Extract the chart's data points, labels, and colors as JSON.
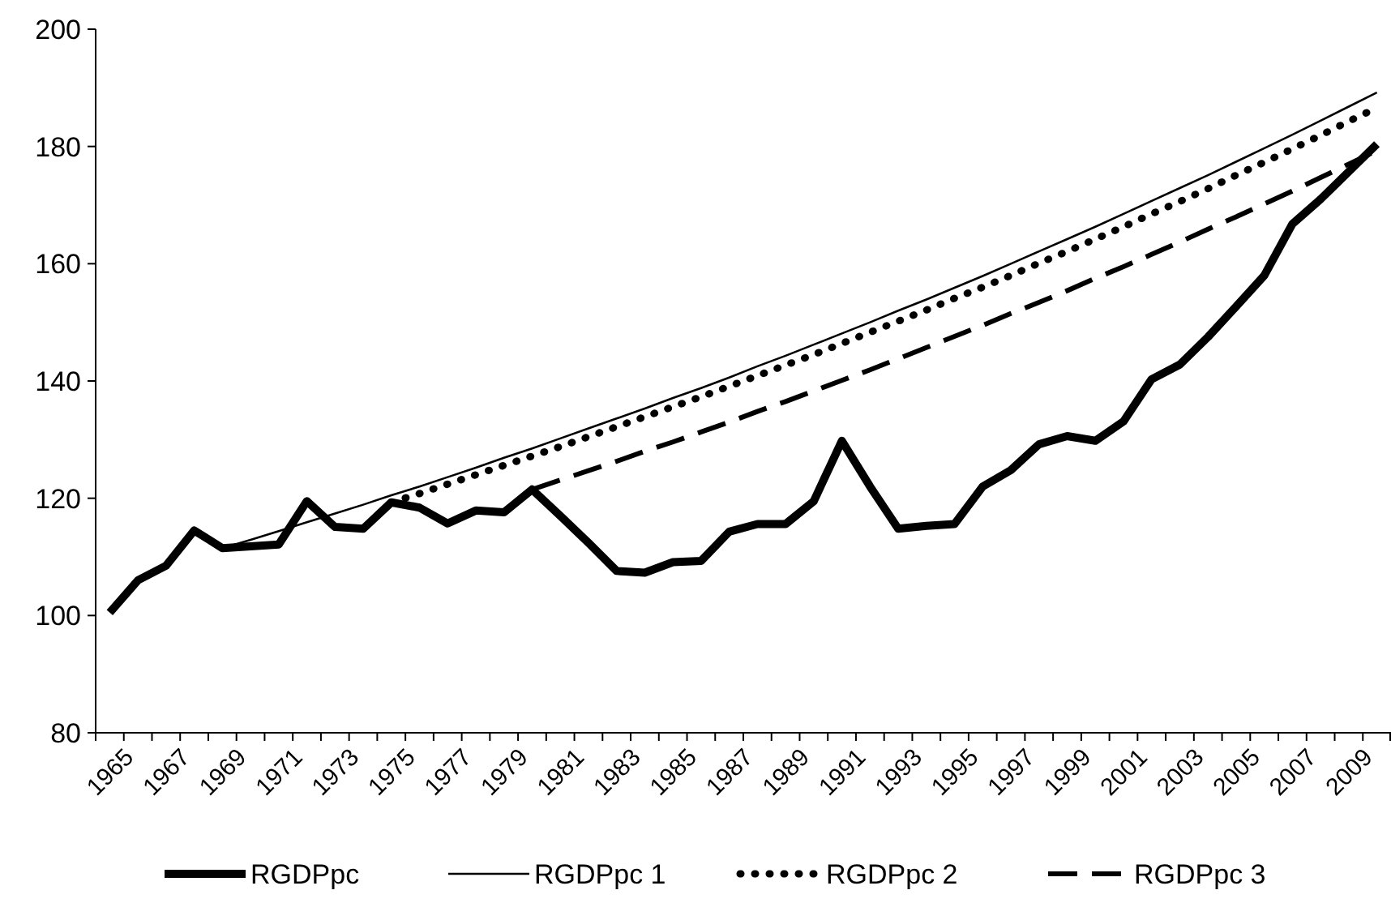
{
  "chart_data": {
    "type": "line",
    "categories": [
      "1965",
      null,
      "1967",
      null,
      "1969",
      null,
      "1971",
      null,
      "1973",
      null,
      "1975",
      null,
      "1977",
      null,
      "1979",
      null,
      "1981",
      null,
      "1983",
      null,
      "1985",
      null,
      "1987",
      null,
      "1989",
      null,
      "1991",
      null,
      "1993",
      null,
      "1995",
      null,
      "1997",
      null,
      "1999",
      null,
      "2001",
      null,
      "2003",
      null,
      "2005",
      null,
      "2007",
      null,
      "2009",
      null
    ],
    "ylim": [
      80,
      200
    ],
    "yticks": [
      80,
      100,
      120,
      140,
      160,
      180,
      200
    ],
    "grid": false,
    "legend": "bottom",
    "marker": "none",
    "series": [
      {
        "name": "RGDPpc",
        "color": "#000000",
        "line_style": "solid",
        "values": [
          100.5,
          106,
          108.5,
          114.5,
          111.5,
          111.8,
          112.1,
          119.5,
          115.1,
          114.8,
          119.3,
          118.4,
          115.7,
          117.9,
          117.6,
          121.5,
          117,
          112.4,
          107.6,
          107.3,
          109.1,
          109.3,
          114.3,
          115.6,
          115.6,
          119.5,
          129.8,
          122,
          114.8,
          115.3,
          115.6,
          122,
          124.8,
          129.2,
          130.6,
          129.8,
          133.1,
          140.3,
          142.8,
          147.5,
          152.7,
          158,
          166.8,
          171,
          175.7,
          180.4
        ]
      },
      {
        "name": "RGDPpc 1",
        "color": "#000000",
        "line_style": "solid",
        "values": [
          null,
          null,
          null,
          null,
          111.5,
          112.9,
          114.4,
          115.9,
          117.4,
          118.9,
          120.5,
          122.0,
          123.6,
          125.2,
          126.9,
          128.5,
          130.2,
          131.9,
          133.6,
          135.3,
          137.1,
          138.8,
          140.6,
          142.5,
          144.3,
          146.2,
          148.1,
          150.0,
          152.0,
          153.9,
          155.9,
          157.9,
          160.0,
          162.1,
          164.2,
          166.3,
          168.5,
          170.7,
          172.9,
          175.1,
          177.4,
          179.7,
          182.0,
          184.4,
          186.8,
          189.2
        ]
      },
      {
        "name": "RGDPpc 2",
        "color": "#000000",
        "line_style": "dotted",
        "values": [
          null,
          null,
          null,
          null,
          null,
          null,
          null,
          null,
          null,
          null,
          119.3,
          120.8,
          122.4,
          124.0,
          125.6,
          127.2,
          128.8,
          130.5,
          132.2,
          133.9,
          135.6,
          137.3,
          139.1,
          140.9,
          142.7,
          144.5,
          146.4,
          148.3,
          150.2,
          152.1,
          154.1,
          156.0,
          158.0,
          160.1,
          162.1,
          164.2,
          166.3,
          168.5,
          170.6,
          172.8,
          175.1,
          177.3,
          179.6,
          181.9,
          184.3,
          186.6
        ]
      },
      {
        "name": "RGDPpc 3",
        "color": "#000000",
        "line_style": "dashed",
        "values": [
          null,
          null,
          null,
          null,
          null,
          null,
          null,
          null,
          null,
          null,
          null,
          null,
          null,
          null,
          null,
          121.5,
          123.1,
          124.7,
          126.3,
          128.0,
          129.6,
          131.3,
          133.0,
          134.8,
          136.5,
          138.3,
          140.1,
          141.9,
          143.8,
          145.7,
          147.6,
          149.5,
          151.5,
          153.4,
          155.4,
          157.5,
          159.5,
          161.6,
          163.7,
          165.9,
          168.0,
          170.2,
          172.4,
          174.7,
          177.0,
          179.3
        ]
      }
    ]
  }
}
